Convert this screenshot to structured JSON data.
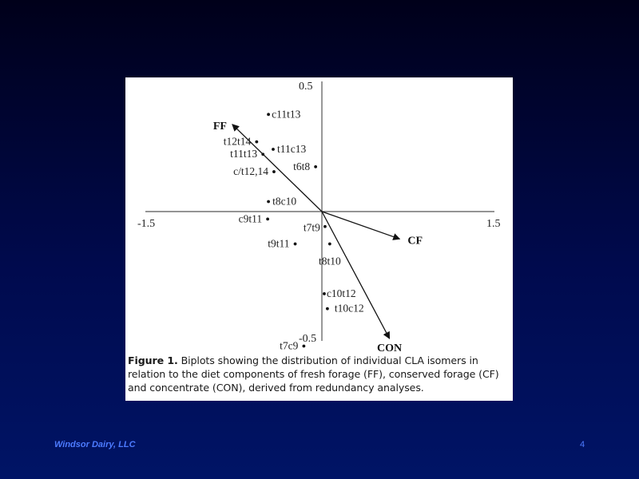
{
  "chart_data": {
    "type": "scatter",
    "xlim": [
      -1.5,
      1.5
    ],
    "ylim": [
      -0.5,
      0.5
    ],
    "tick_labels": {
      "x_min": "-1.5",
      "x_max": "1.5",
      "y_max": "0.5",
      "y_min": "-0.5"
    },
    "points": [
      {
        "label": "c11t13",
        "x": -0.68,
        "y": 0.39
      },
      {
        "label": "t12t14",
        "x": -0.83,
        "y": 0.28
      },
      {
        "label": "t11t13",
        "x": -0.75,
        "y": 0.23
      },
      {
        "label": "t11c13",
        "x": -0.62,
        "y": 0.25
      },
      {
        "label": "t6t8",
        "x": -0.08,
        "y": 0.18
      },
      {
        "label": "c/t12,14",
        "x": -0.61,
        "y": 0.16
      },
      {
        "label": "t8c10",
        "x": -0.68,
        "y": 0.04
      },
      {
        "label": "c9t11",
        "x": -0.69,
        "y": -0.03
      },
      {
        "label": "t7t9",
        "x": 0.04,
        "y": -0.06
      },
      {
        "label": "t9t11",
        "x": -0.34,
        "y": -0.13
      },
      {
        "label": "t8t10",
        "x": 0.1,
        "y": -0.13
      },
      {
        "label": "c10t12",
        "x": 0.03,
        "y": -0.33
      },
      {
        "label": "t10c12",
        "x": 0.07,
        "y": -0.39
      },
      {
        "label": "t7c9",
        "x": -0.23,
        "y": -0.54
      }
    ],
    "vectors": [
      {
        "label": "FF",
        "x": -1.14,
        "y": 0.35
      },
      {
        "label": "CF",
        "x": 0.99,
        "y": -0.11
      },
      {
        "label": "CON",
        "x": 0.86,
        "y": -0.51
      }
    ]
  },
  "caption": {
    "label": "Figure 1.",
    "text": " Biplots showing the distribution of individual CLA isomers in relation to the diet components of fresh forage (FF), conserved forage (CF) and concentrate (CON), derived from redundancy analyses."
  },
  "footer": {
    "company": "Windsor Dairy, LLC",
    "page_number": "4"
  }
}
